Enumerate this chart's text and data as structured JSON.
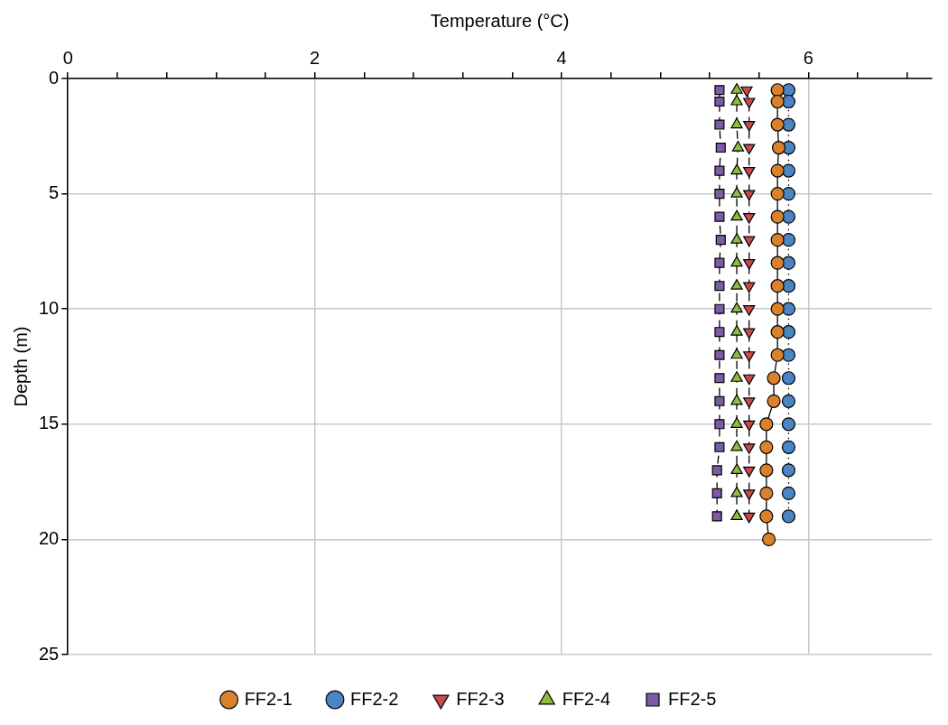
{
  "chart_data": {
    "type": "line",
    "xlabel": "Temperature (°C)",
    "ylabel": "Depth (m)",
    "xlim": [
      0,
      7
    ],
    "xticks": [
      0,
      {
        "value": 0.4,
        "label": null
      },
      {
        "value": 0.8,
        "label": null
      },
      {
        "value": 1.2,
        "label": null
      },
      {
        "value": 1.6,
        "label": null
      },
      2,
      {
        "value": 2.4,
        "label": null
      },
      {
        "value": 2.8,
        "label": null
      },
      {
        "value": 3.2,
        "label": null
      },
      {
        "value": 3.6,
        "label": null
      },
      4,
      {
        "value": 4.4,
        "label": null
      },
      {
        "value": 4.8,
        "label": null
      },
      {
        "value": 5.2,
        "label": null
      },
      {
        "value": 5.6,
        "label": null
      },
      6,
      {
        "value": 6.4,
        "label": null
      },
      {
        "value": 6.8,
        "label": null
      }
    ],
    "ylim": [
      25,
      0
    ],
    "yticks": [
      0,
      5,
      10,
      15,
      20,
      25
    ],
    "grid": true,
    "legend": "bottom",
    "series": [
      {
        "name": "FF2-1",
        "color": "#d9822b",
        "marker": "circle",
        "line_style": "solid",
        "x": [
          5.75,
          5.75,
          5.75,
          5.76,
          5.75,
          5.75,
          5.75,
          5.75,
          5.75,
          5.75,
          5.75,
          5.75,
          5.75,
          5.72,
          5.72,
          5.66,
          5.66,
          5.66,
          5.66,
          5.66,
          5.68
        ],
        "values": [
          0.5,
          1,
          2,
          3,
          4,
          5,
          6,
          7,
          8,
          9,
          10,
          11,
          12,
          13,
          14,
          15,
          16,
          17,
          18,
          19,
          20
        ]
      },
      {
        "name": "FF2-2",
        "color": "#4a86c5",
        "marker": "circle",
        "line_style": "dotted",
        "x": [
          5.84,
          5.84,
          5.84,
          5.84,
          5.84,
          5.84,
          5.84,
          5.84,
          5.84,
          5.84,
          5.84,
          5.84,
          5.84,
          5.84,
          5.84,
          5.84,
          5.84,
          5.84,
          5.84,
          5.84
        ],
        "values": [
          0.5,
          1,
          2,
          3,
          4,
          5,
          6,
          7,
          8,
          9,
          10,
          11,
          12,
          13,
          14,
          15,
          16,
          17,
          18,
          19
        ]
      },
      {
        "name": "FF2-3",
        "color": "#c94a4a",
        "marker": "triangle-down",
        "line_style": "dashed",
        "x": [
          5.5,
          5.52,
          5.52,
          5.52,
          5.52,
          5.52,
          5.52,
          5.52,
          5.52,
          5.52,
          5.52,
          5.52,
          5.52,
          5.52,
          5.52,
          5.52,
          5.52,
          5.52,
          5.52,
          5.52
        ],
        "values": [
          0.5,
          1,
          2,
          3,
          4,
          5,
          6,
          7,
          8,
          9,
          10,
          11,
          12,
          13,
          14,
          15,
          16,
          17,
          18,
          19
        ]
      },
      {
        "name": "FF2-4",
        "color": "#8fbb3f",
        "marker": "triangle",
        "line_style": "dashed",
        "x": [
          5.42,
          5.42,
          5.42,
          5.43,
          5.42,
          5.42,
          5.42,
          5.42,
          5.42,
          5.42,
          5.42,
          5.42,
          5.42,
          5.42,
          5.42,
          5.42,
          5.42,
          5.42,
          5.42,
          5.42
        ],
        "values": [
          0.5,
          1,
          2,
          3,
          4,
          5,
          6,
          7,
          8,
          9,
          10,
          11,
          12,
          13,
          14,
          15,
          16,
          17,
          18,
          19
        ]
      },
      {
        "name": "FF2-5",
        "color": "#7d5ba6",
        "marker": "square",
        "line_style": "dashed",
        "x": [
          5.28,
          5.28,
          5.28,
          5.29,
          5.28,
          5.28,
          5.28,
          5.29,
          5.28,
          5.28,
          5.28,
          5.28,
          5.28,
          5.28,
          5.28,
          5.28,
          5.28,
          5.26,
          5.26,
          5.26
        ],
        "values": [
          0.5,
          1,
          2,
          3,
          4,
          5,
          6,
          7,
          8,
          9,
          10,
          11,
          12,
          13,
          14,
          15,
          16,
          17,
          18,
          19
        ]
      }
    ]
  }
}
